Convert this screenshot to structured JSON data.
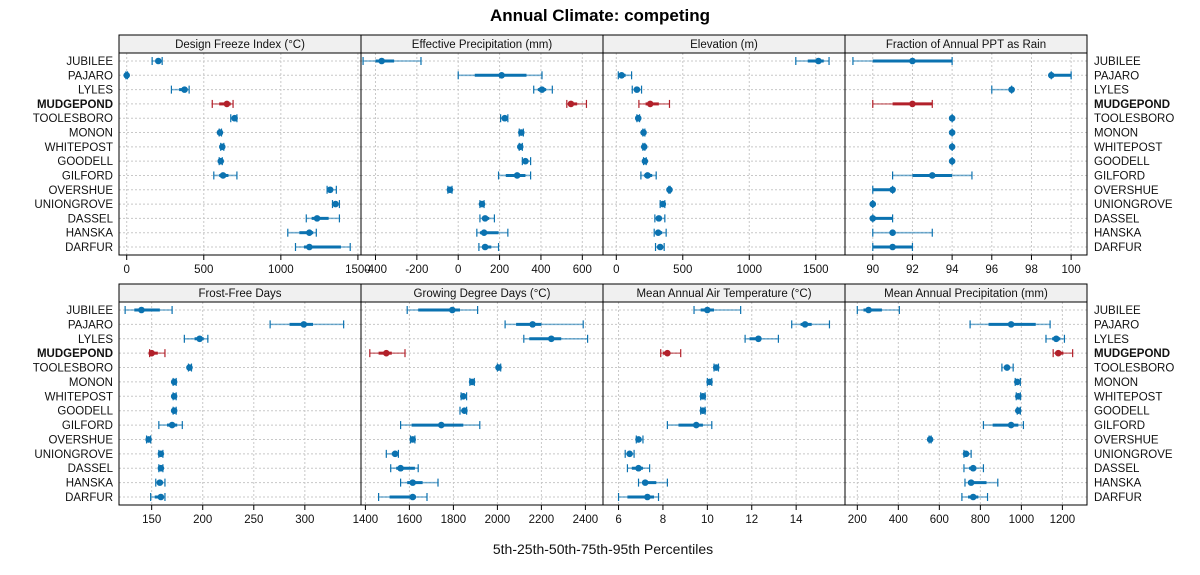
{
  "chart_data": {
    "type": "scatter",
    "subtype": "percentile-dotplot",
    "title": "Annual Climate: competing",
    "xlabel": "5th-25th-50th-75th-95th Percentiles",
    "ylabel": "",
    "legend": "none",
    "grid": true,
    "highlight": "MUDGEPOND",
    "colors": {
      "default": "#0b72b0",
      "highlight": "#b2202a"
    },
    "locations": [
      "JUBILEE",
      "PAJARO",
      "LYLES",
      "MUDGEPOND",
      "TOOLESBORO",
      "MONON",
      "WHITEPOST",
      "GOODELL",
      "GILFORD",
      "OVERSHUE",
      "UNIONGROVE",
      "DASSEL",
      "HANSKA",
      "DARFUR"
    ],
    "percentile_order": [
      "p5",
      "p25",
      "p50",
      "p75",
      "p95"
    ],
    "panels": [
      {
        "title": "Design Freeze Index (°C)",
        "xlim": [
          -50,
          1520
        ],
        "ticks": [
          0,
          500,
          1000,
          1500
        ],
        "values": [
          [
            165,
            190,
            205,
            220,
            230
          ],
          [
            -5,
            -2,
            0,
            2,
            5
          ],
          [
            290,
            340,
            375,
            395,
            405
          ],
          [
            555,
            600,
            650,
            675,
            690
          ],
          [
            675,
            690,
            700,
            710,
            715
          ],
          [
            600,
            605,
            605,
            610,
            615
          ],
          [
            610,
            615,
            620,
            625,
            630
          ],
          [
            600,
            605,
            610,
            615,
            620
          ],
          [
            565,
            600,
            625,
            660,
            715
          ],
          [
            1300,
            1310,
            1320,
            1335,
            1360
          ],
          [
            1335,
            1345,
            1355,
            1370,
            1380
          ],
          [
            1165,
            1200,
            1235,
            1310,
            1380
          ],
          [
            1045,
            1120,
            1185,
            1210,
            1230
          ],
          [
            1095,
            1150,
            1185,
            1390,
            1450
          ]
        ]
      },
      {
        "title": "Effective Precipitation (mm)",
        "xlim": [
          -470,
          700
        ],
        "ticks": [
          -400,
          -200,
          0,
          200,
          400,
          600
        ],
        "values": [
          [
            -460,
            -400,
            -370,
            -310,
            -180
          ],
          [
            0,
            80,
            210,
            330,
            405
          ],
          [
            365,
            385,
            405,
            425,
            455
          ],
          [
            525,
            535,
            545,
            575,
            620
          ],
          [
            205,
            215,
            225,
            230,
            240
          ],
          [
            295,
            300,
            305,
            310,
            315
          ],
          [
            295,
            300,
            300,
            305,
            310
          ],
          [
            310,
            315,
            325,
            335,
            350
          ],
          [
            195,
            230,
            285,
            325,
            350
          ],
          [
            -50,
            -45,
            -40,
            -35,
            -30
          ],
          [
            105,
            110,
            115,
            120,
            125
          ],
          [
            105,
            115,
            130,
            150,
            175
          ],
          [
            90,
            105,
            125,
            195,
            240
          ],
          [
            100,
            115,
            130,
            160,
            195
          ]
        ]
      },
      {
        "title": "Elevation (m)",
        "xlim": [
          -100,
          1720
        ],
        "ticks": [
          0,
          500,
          1000,
          1500
        ],
        "values": [
          [
            1350,
            1440,
            1520,
            1560,
            1600
          ],
          [
            15,
            25,
            40,
            70,
            115
          ],
          [
            120,
            140,
            155,
            170,
            190
          ],
          [
            170,
            220,
            255,
            320,
            400
          ],
          [
            155,
            160,
            165,
            170,
            175
          ],
          [
            200,
            205,
            205,
            210,
            215
          ],
          [
            200,
            205,
            210,
            210,
            215
          ],
          [
            205,
            210,
            215,
            220,
            225
          ],
          [
            185,
            210,
            235,
            270,
            300
          ],
          [
            395,
            400,
            400,
            405,
            405
          ],
          [
            330,
            340,
            350,
            355,
            365
          ],
          [
            290,
            305,
            320,
            340,
            365
          ],
          [
            285,
            300,
            315,
            345,
            375
          ],
          [
            295,
            315,
            330,
            340,
            360
          ]
        ]
      },
      {
        "title": "Fraction of Annual PPT as Rain",
        "xlim": [
          88.6,
          100.8
        ],
        "ticks": [
          90,
          92,
          94,
          96,
          98,
          100
        ],
        "values": [
          [
            89,
            90,
            92,
            94,
            94
          ],
          [
            99,
            99,
            99,
            100,
            100
          ],
          [
            96,
            97,
            97,
            97,
            97
          ],
          [
            90,
            91,
            92,
            93,
            93
          ],
          [
            94,
            94,
            94,
            94,
            94
          ],
          [
            94,
            94,
            94,
            94,
            94
          ],
          [
            94,
            94,
            94,
            94,
            94
          ],
          [
            94,
            94,
            94,
            94,
            94
          ],
          [
            91,
            92,
            93,
            94,
            95
          ],
          [
            90,
            90,
            91,
            91,
            91
          ],
          [
            90,
            90,
            90,
            90,
            90
          ],
          [
            90,
            90,
            90,
            91,
            91
          ],
          [
            90,
            91,
            91,
            91,
            93
          ],
          [
            90,
            90,
            91,
            92,
            92
          ]
        ]
      },
      {
        "title": "Frost-Free Days",
        "xlim": [
          118,
          355
        ],
        "ticks": [
          150,
          200,
          250,
          300
        ],
        "values": [
          [
            124,
            133,
            140,
            158,
            170
          ],
          [
            266,
            285,
            299,
            308,
            338
          ],
          [
            182,
            192,
            197,
            201,
            205
          ],
          [
            148,
            149,
            150,
            156,
            163
          ],
          [
            186,
            187,
            187,
            188,
            189
          ],
          [
            171,
            172,
            172,
            173,
            174
          ],
          [
            171,
            172,
            172,
            173,
            174
          ],
          [
            171,
            172,
            172,
            173,
            174
          ],
          [
            157,
            165,
            170,
            175,
            180
          ],
          [
            145,
            146,
            147,
            148,
            149
          ],
          [
            157,
            158,
            159,
            160,
            161
          ],
          [
            157,
            158,
            159,
            160,
            161
          ],
          [
            154,
            156,
            158,
            160,
            163
          ],
          [
            149,
            153,
            159,
            161,
            163
          ]
        ]
      },
      {
        "title": "Growing Degree Days (°C)",
        "xlim": [
          1380,
          2480
        ],
        "ticks": [
          1400,
          1600,
          1800,
          2000,
          2200,
          2400
        ],
        "values": [
          [
            1590,
            1640,
            1795,
            1830,
            1910
          ],
          [
            2035,
            2085,
            2160,
            2200,
            2390
          ],
          [
            2120,
            2145,
            2245,
            2290,
            2410
          ],
          [
            1420,
            1460,
            1495,
            1520,
            1580
          ],
          [
            2000,
            2005,
            2005,
            2010,
            2015
          ],
          [
            1875,
            1880,
            1885,
            1890,
            1895
          ],
          [
            1835,
            1840,
            1845,
            1855,
            1860
          ],
          [
            1830,
            1840,
            1850,
            1855,
            1860
          ],
          [
            1560,
            1610,
            1745,
            1845,
            1920
          ],
          [
            1605,
            1610,
            1615,
            1620,
            1625
          ],
          [
            1495,
            1520,
            1535,
            1540,
            1550
          ],
          [
            1515,
            1540,
            1560,
            1625,
            1640
          ],
          [
            1560,
            1590,
            1615,
            1660,
            1730
          ],
          [
            1460,
            1510,
            1615,
            1630,
            1680
          ]
        ]
      },
      {
        "title": "Mean Annual Air Temperature (°C)",
        "xlim": [
          5.3,
          16.2
        ],
        "ticks": [
          6,
          8,
          10,
          12,
          14
        ],
        "values": [
          [
            9.4,
            9.7,
            10.0,
            10.3,
            11.5
          ],
          [
            13.8,
            14.2,
            14.4,
            14.7,
            15.5
          ],
          [
            11.7,
            11.9,
            12.3,
            12.4,
            13.2
          ],
          [
            7.9,
            8.0,
            8.2,
            8.3,
            8.8
          ],
          [
            10.3,
            10.4,
            10.4,
            10.5,
            10.5
          ],
          [
            10.0,
            10.0,
            10.1,
            10.1,
            10.2
          ],
          [
            9.7,
            9.8,
            9.8,
            9.9,
            9.9
          ],
          [
            9.7,
            9.8,
            9.8,
            9.9,
            9.9
          ],
          [
            8.2,
            8.7,
            9.5,
            9.8,
            10.2
          ],
          [
            6.8,
            6.9,
            6.9,
            7.0,
            7.1
          ],
          [
            6.3,
            6.4,
            6.5,
            6.6,
            6.7
          ],
          [
            6.4,
            6.6,
            6.9,
            7.1,
            7.4
          ],
          [
            6.9,
            7.1,
            7.2,
            7.7,
            8.2
          ],
          [
            6.0,
            6.4,
            7.3,
            7.6,
            7.8
          ]
        ]
      },
      {
        "title": "Mean Annual Precipitation (mm)",
        "xlim": [
          140,
          1320
        ],
        "ticks": [
          200,
          400,
          600,
          800,
          1000,
          1200
        ],
        "values": [
          [
            200,
            230,
            255,
            320,
            405
          ],
          [
            750,
            840,
            950,
            1070,
            1140
          ],
          [
            1120,
            1150,
            1170,
            1190,
            1210
          ],
          [
            1155,
            1165,
            1180,
            1205,
            1250
          ],
          [
            905,
            920,
            930,
            945,
            960
          ],
          [
            970,
            975,
            980,
            990,
            995
          ],
          [
            975,
            980,
            985,
            990,
            995
          ],
          [
            980,
            985,
            985,
            990,
            995
          ],
          [
            815,
            860,
            950,
            985,
            1010
          ],
          [
            550,
            555,
            555,
            560,
            560
          ],
          [
            720,
            725,
            730,
            745,
            755
          ],
          [
            720,
            745,
            765,
            780,
            815
          ],
          [
            725,
            740,
            755,
            830,
            885
          ],
          [
            710,
            740,
            765,
            790,
            835
          ]
        ]
      }
    ]
  }
}
